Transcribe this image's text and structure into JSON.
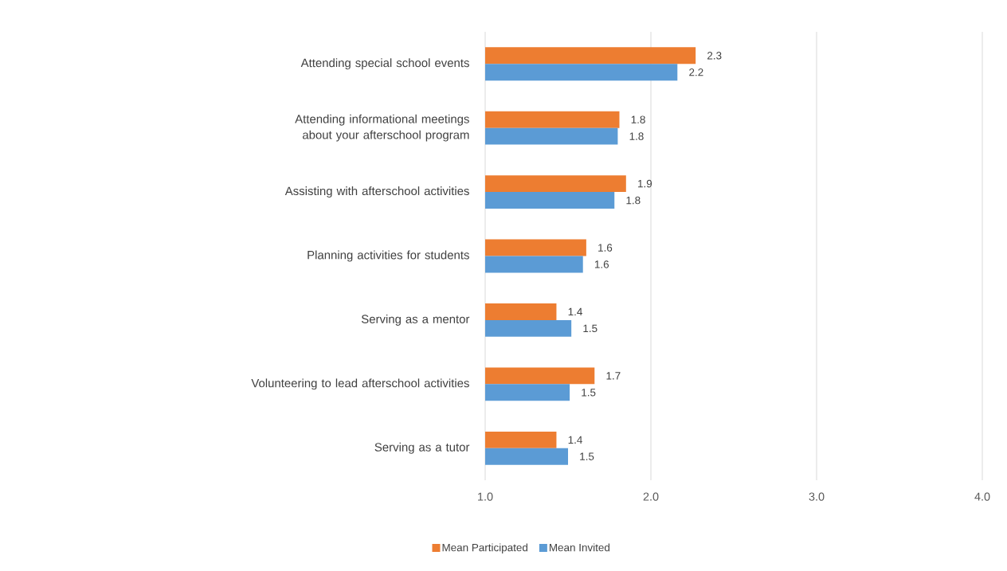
{
  "chart_data": {
    "type": "bar",
    "orientation": "horizontal",
    "categories": [
      "Attending special school events",
      "Attending informational meetings about your afterschool program",
      "Assisting with afterschool activities",
      "Planning activities for students",
      "Serving as a mentor",
      "Volunteering to lead afterschool activities",
      "Serving as a tutor"
    ],
    "series": [
      {
        "name": "Mean Participated",
        "color": "#ed7d31",
        "values": [
          2.27,
          1.81,
          1.85,
          1.61,
          1.43,
          1.66,
          1.43
        ],
        "value_labels": [
          "2.3",
          "1.8",
          "1.9",
          "1.6",
          "1.4",
          "1.7",
          "1.4"
        ]
      },
      {
        "name": "Mean Invited",
        "color": "#5b9bd5",
        "values": [
          2.16,
          1.8,
          1.78,
          1.59,
          1.52,
          1.51,
          1.5
        ],
        "value_labels": [
          "2.2",
          "1.8",
          "1.8",
          "1.6",
          "1.5",
          "1.5",
          "1.5"
        ]
      }
    ],
    "xlim": [
      1,
      4
    ],
    "xticks": [
      {
        "value": 1,
        "label": "1.0"
      },
      {
        "value": 2,
        "label": "2.0"
      },
      {
        "value": 3,
        "label": "3.0"
      },
      {
        "value": 4,
        "label": "4.0"
      }
    ],
    "grid": "x",
    "legend": "bottom"
  }
}
